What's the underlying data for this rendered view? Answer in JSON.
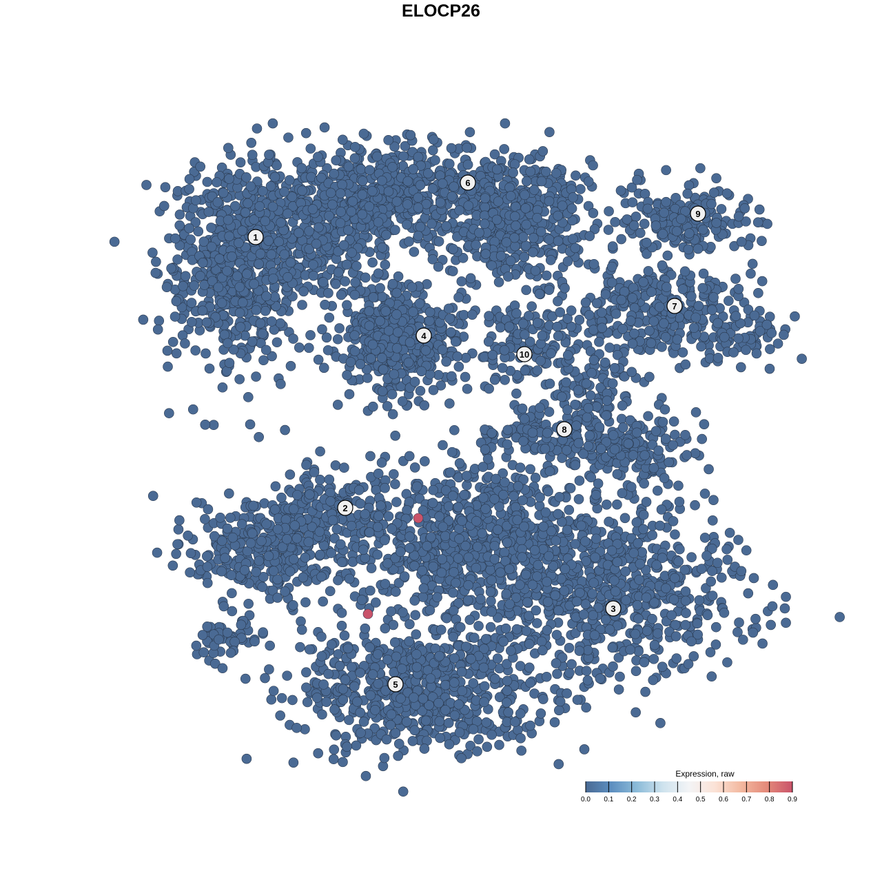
{
  "chart_data": {
    "type": "scatter",
    "title": "ELOCP26",
    "xlabel": "",
    "ylabel": "",
    "xlim": [
      -45,
      50
    ],
    "ylim": [
      -46,
      46
    ],
    "grid": false,
    "axes_visible": false,
    "point_color_low": "#4d6a8f",
    "point_stroke": "#2b3a4f",
    "clusters": [
      {
        "label": "1",
        "label_pos": [
          -26.9,
          29.6
        ],
        "components": [
          [
            -30,
            24,
            5,
            7,
            500
          ],
          [
            -20,
            30,
            8,
            5,
            400
          ]
        ],
        "expression": 0
      },
      {
        "label": "2",
        "label_pos": [
          -13.9,
          -9.7
        ],
        "components": [
          [
            -25,
            -16,
            6,
            3.5,
            300
          ],
          [
            -17,
            -9,
            5,
            2.5,
            150
          ],
          [
            -31,
            -29,
            3,
            1.5,
            50
          ]
        ],
        "expression": 0
      },
      {
        "label": "3",
        "label_pos": [
          25,
          -24.3
        ],
        "components": [
          [
            26,
            -22,
            9,
            6,
            600
          ]
        ],
        "expression": 0
      },
      {
        "label": "4",
        "label_pos": [
          -2.5,
          15.3
        ],
        "components": [
          [
            -6,
            15,
            4.5,
            4,
            450
          ]
        ],
        "expression": 0
      },
      {
        "label": "5",
        "label_pos": [
          -6.6,
          -35.3
        ],
        "components": [
          [
            -3,
            -36,
            9,
            4.5,
            650
          ],
          [
            4,
            -15,
            9,
            6,
            800
          ]
        ],
        "expression": 0
      },
      {
        "label": "6",
        "label_pos": [
          3.9,
          37.5
        ],
        "components": [
          [
            -4,
            36,
            12,
            3.5,
            700
          ],
          [
            12,
            30,
            6,
            4,
            250
          ]
        ],
        "expression": 0
      },
      {
        "label": "7",
        "label_pos": [
          33.9,
          19.6
        ],
        "components": [
          [
            32,
            19,
            7,
            3,
            300
          ],
          [
            45,
            15,
            3,
            2,
            60
          ]
        ],
        "expression": 0
      },
      {
        "label": "8",
        "label_pos": [
          17.9,
          1.7
        ],
        "components": [
          [
            22,
            6,
            3,
            5,
            150
          ],
          [
            28,
            -1,
            4,
            2.5,
            150
          ],
          [
            14,
            1,
            4,
            2,
            80
          ]
        ],
        "expression": 0
      },
      {
        "label": "9",
        "label_pos": [
          37.3,
          33
        ],
        "components": [
          [
            36,
            32,
            5,
            2.5,
            180
          ]
        ],
        "expression": 0
      },
      {
        "label": "10",
        "label_pos": [
          12.1,
          12.6
        ],
        "components": [
          [
            12,
            14,
            4,
            3.5,
            120
          ]
        ],
        "expression": 0
      }
    ],
    "expressing_points": [
      {
        "x": -3.3,
        "y": -11.2,
        "value": 0.9
      },
      {
        "x": -10.6,
        "y": -25.1,
        "value": 0.9
      }
    ],
    "legend": {
      "title": "Expression, raw",
      "placement": "bottom-right",
      "ticks": [
        "0.0",
        "0.1",
        "0.2",
        "0.3",
        "0.4",
        "0.5",
        "0.6",
        "0.7",
        "0.8",
        "0.9"
      ],
      "range": [
        0,
        0.9
      ],
      "colors": [
        "#4a6a94",
        "#5d8fc0",
        "#8dbcd9",
        "#cfe3ee",
        "#f3f4f6",
        "#fbe2d6",
        "#f3b9a0",
        "#e48a7a",
        "#c9536a"
      ]
    }
  }
}
